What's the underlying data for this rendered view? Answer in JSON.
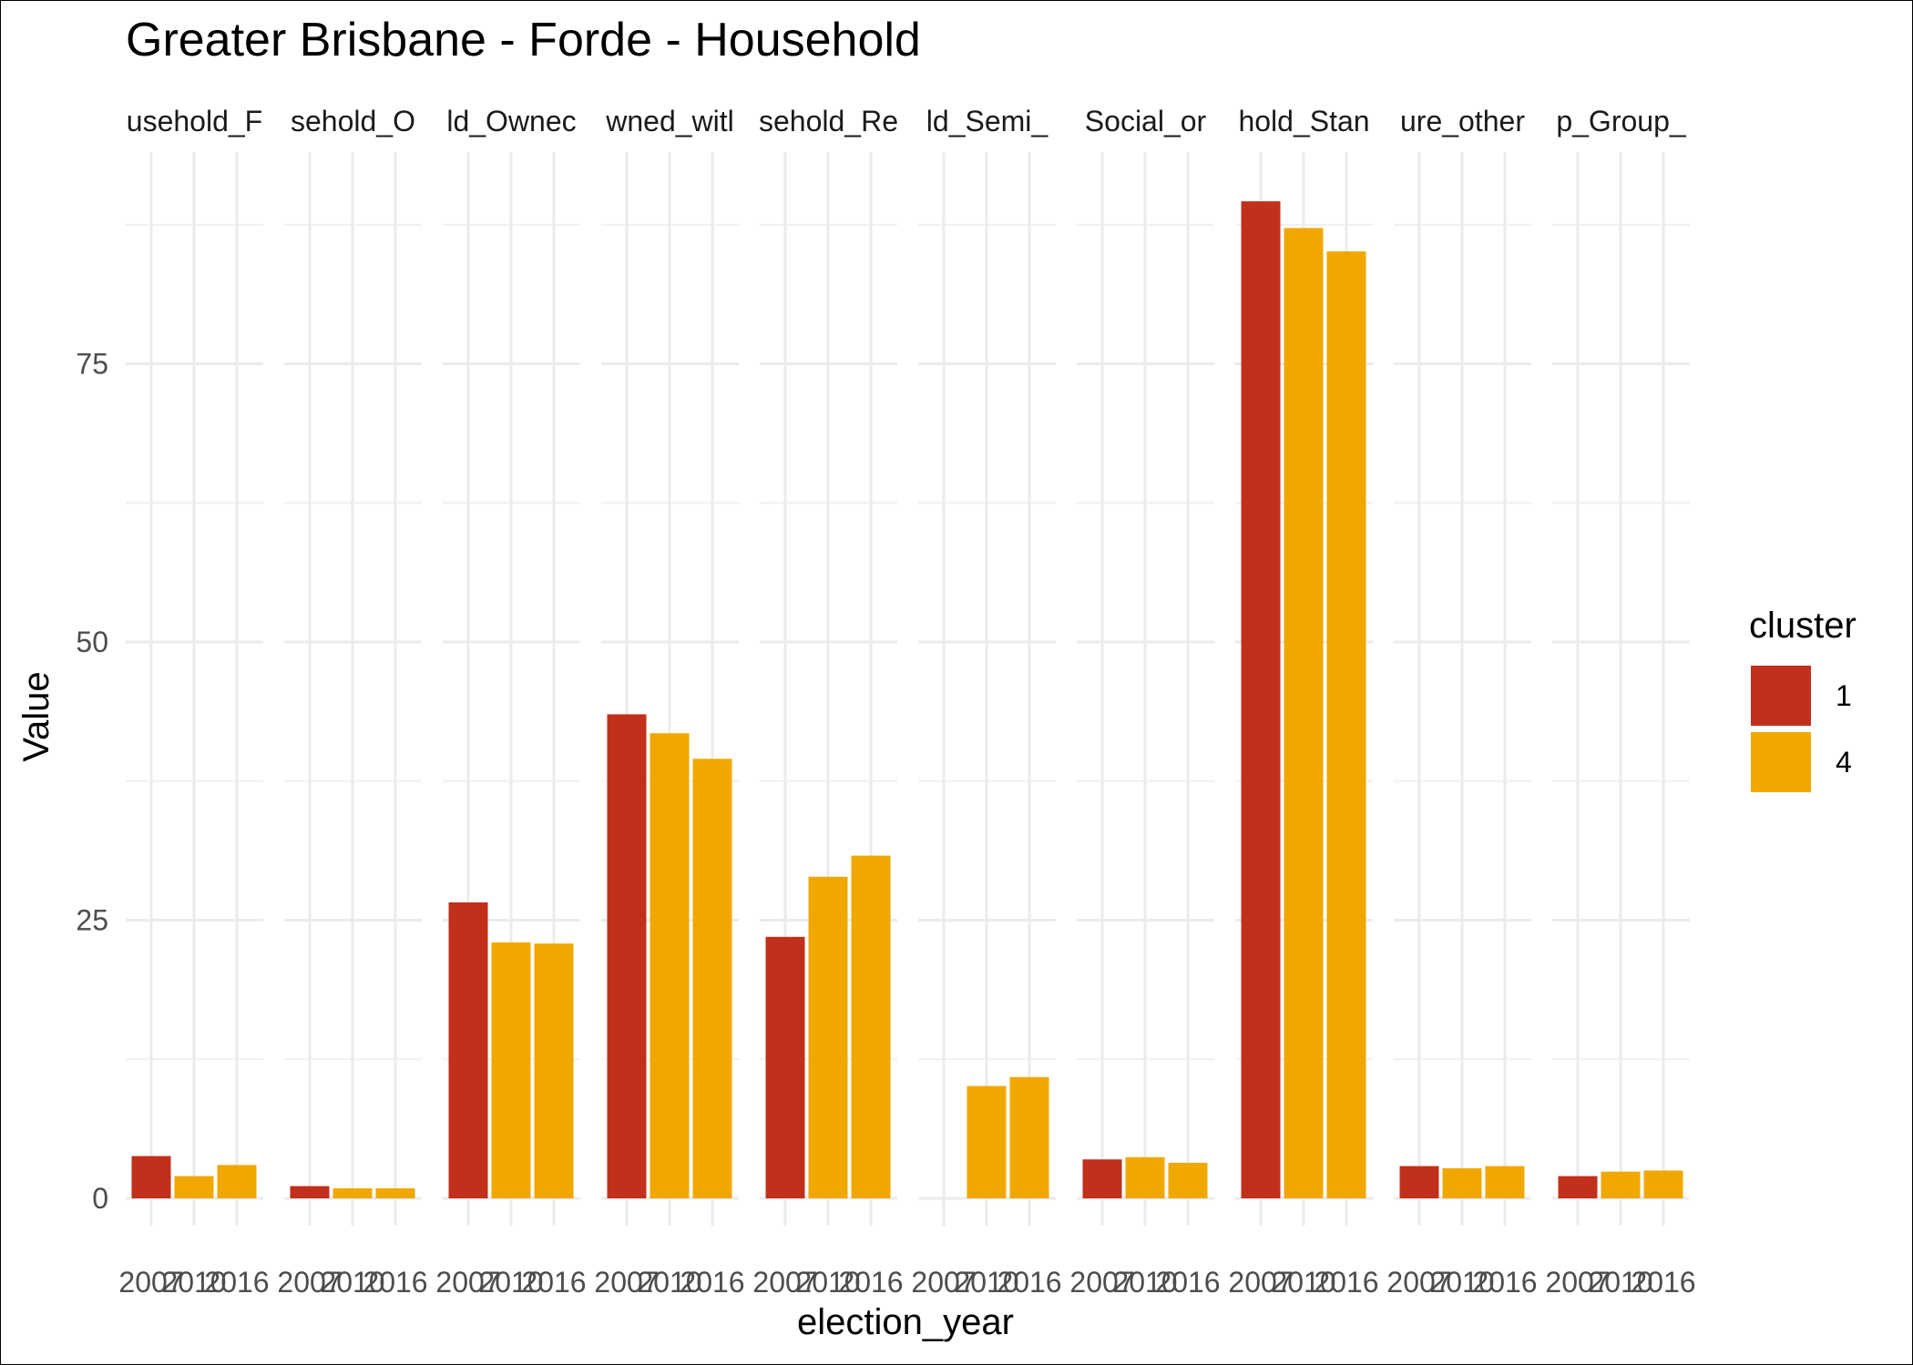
{
  "chart_data": {
    "type": "bar",
    "title": "Greater Brisbane - Forde - Household",
    "xlabel": "election_year",
    "ylabel": "Value",
    "ylim": [
      -2.0,
      96.0
    ],
    "yticks": [
      0,
      25,
      50,
      75
    ],
    "grid": true,
    "legend_position": "right",
    "legend_title": "cluster",
    "legend": [
      {
        "label": "1",
        "color": "#C0301A"
      },
      {
        "label": "4",
        "color": "#F0A800"
      }
    ],
    "categories": [
      "2007",
      "2010",
      "2016"
    ],
    "facets": [
      {
        "label": "usehold_F",
        "values": [
          3.8,
          2.0,
          3.0
        ],
        "clusters": [
          "1",
          "4",
          "4"
        ]
      },
      {
        "label": "sehold_O",
        "values": [
          1.1,
          0.9,
          0.9
        ],
        "clusters": [
          "1",
          "4",
          "4"
        ]
      },
      {
        "label": "ld_Ownec",
        "values": [
          26.6,
          23.0,
          22.9
        ],
        "clusters": [
          "1",
          "4",
          "4"
        ]
      },
      {
        "label": "wned_witl",
        "values": [
          43.5,
          41.8,
          39.5
        ],
        "clusters": [
          "1",
          "4",
          "4"
        ]
      },
      {
        "label": "sehold_Re",
        "values": [
          23.5,
          28.9,
          30.8
        ],
        "clusters": [
          "1",
          "4",
          "4"
        ]
      },
      {
        "label": "ld_Semi_",
        "values": [
          null,
          10.1,
          10.9
        ],
        "clusters": [
          "1",
          "4",
          "4"
        ]
      },
      {
        "label": "Social_or",
        "values": [
          3.5,
          3.7,
          3.2
        ],
        "clusters": [
          "1",
          "4",
          "4"
        ]
      },
      {
        "label": "hold_Stan",
        "values": [
          89.6,
          87.2,
          85.1
        ],
        "clusters": [
          "1",
          "4",
          "4"
        ]
      },
      {
        "label": "ure_other",
        "values": [
          2.9,
          2.7,
          2.9
        ],
        "clusters": [
          "1",
          "4",
          "4"
        ]
      },
      {
        "label": "p_Group_",
        "values": [
          2.0,
          2.4,
          2.5
        ],
        "clusters": [
          "1",
          "4",
          "4"
        ]
      }
    ]
  }
}
